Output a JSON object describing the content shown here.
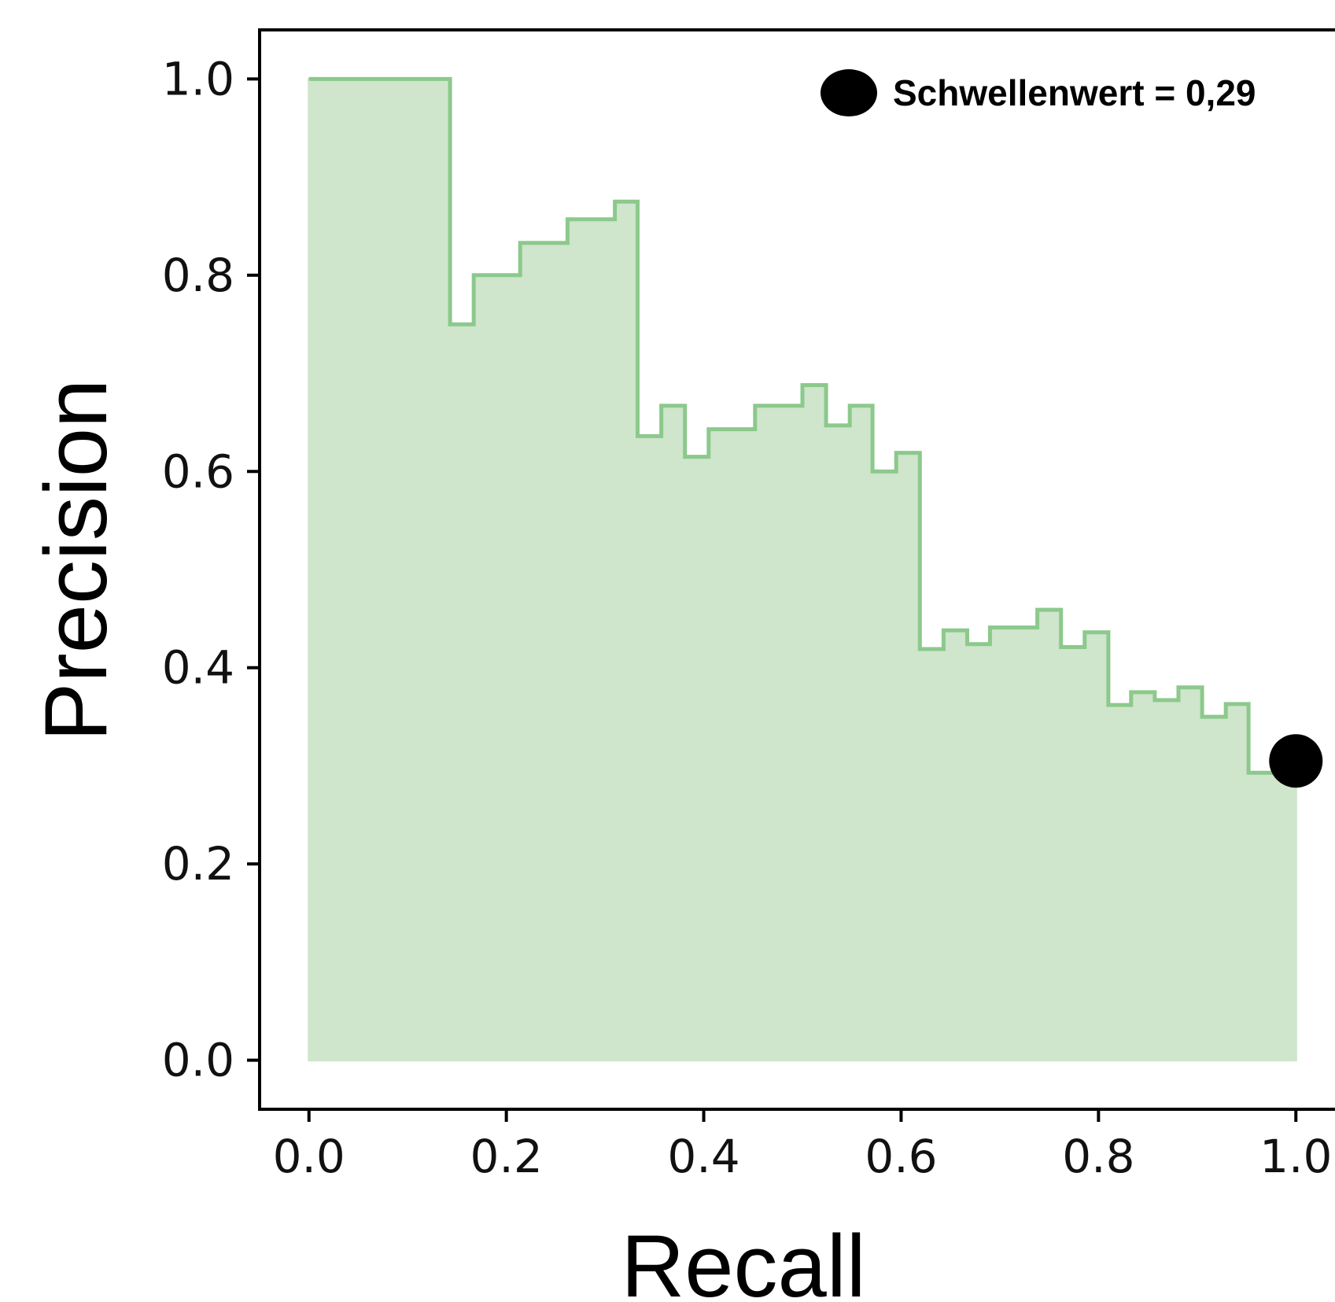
{
  "chart_data": {
    "type": "area",
    "title": "",
    "xlabel": "Recall",
    "ylabel": "Precision",
    "xlim": [
      -0.05,
      1.05
    ],
    "ylim": [
      -0.05,
      1.05
    ],
    "xticks": [
      "0.0",
      "0.2",
      "0.4",
      "0.6",
      "0.8",
      "1.0"
    ],
    "yticks": [
      "0.0",
      "0.2",
      "0.4",
      "0.6",
      "0.8",
      "1.0"
    ],
    "grid": false,
    "colors": {
      "fill": "#cfe5cc",
      "line": "#8cc98c",
      "marker": "#000000"
    },
    "step": "post",
    "series": [
      {
        "recall": [
          0.0,
          0.143,
          0.167,
          0.214,
          0.262,
          0.31,
          0.333,
          0.357,
          0.381,
          0.405,
          0.452,
          0.5,
          0.524,
          0.548,
          0.571,
          0.595,
          0.619,
          0.643,
          0.667,
          0.69,
          0.738,
          0.762,
          0.786,
          0.81,
          0.833,
          0.857,
          0.881,
          0.905,
          0.929,
          0.952,
          1.0
        ],
        "precision": [
          1.0,
          0.75,
          0.8,
          0.833,
          0.857,
          0.875,
          0.636,
          0.667,
          0.615,
          0.643,
          0.667,
          0.688,
          0.647,
          0.667,
          0.6,
          0.619,
          0.419,
          0.438,
          0.424,
          0.441,
          0.459,
          0.421,
          0.436,
          0.362,
          0.375,
          0.367,
          0.38,
          0.35,
          0.363,
          0.293,
          0.293
        ]
      }
    ],
    "marker": {
      "x": 1.0,
      "y": 0.305
    },
    "legend": {
      "label": "Schwellenwert = 0,29",
      "position": "top-right"
    }
  }
}
